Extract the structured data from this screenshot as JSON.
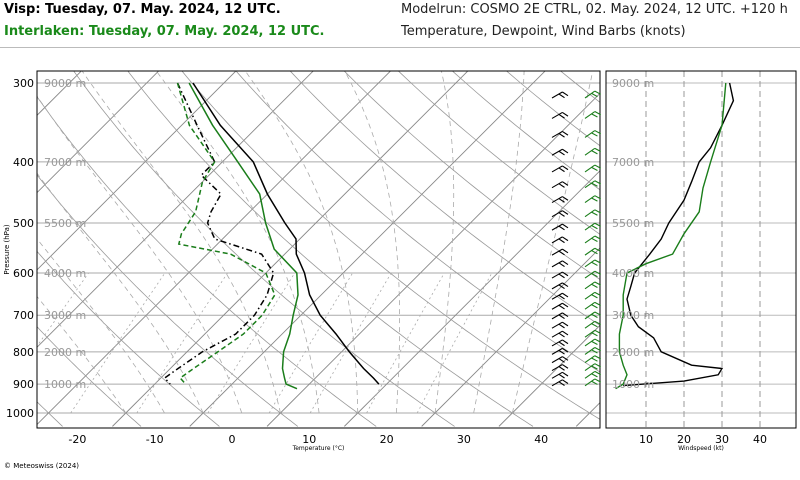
{
  "header": {
    "title_visp": "Visp: Tuesday, 07. May. 2024, 12 UTC.",
    "title_interlaken": "Interlaken: Tuesday, 07. May. 2024, 12 UTC.",
    "modelrun": "Modelrun: COSMO 2E CTRL, 02. May. 2024, 12 UTC. +120 h",
    "variables": "Temperature, Dewpoint, Wind Barbs (knots)"
  },
  "footer": {
    "credit": "© Meteoswiss (2024)"
  },
  "colors": {
    "visp": "#000000",
    "interlaken": "#1a7d1a",
    "grid": "#999999"
  },
  "chart_data": [
    {
      "type": "line",
      "subtype": "skew-t",
      "xlabel": "Temperature (°C)",
      "ylabel": "Pressure (hPa)",
      "x_ticks": [
        -20,
        -10,
        0,
        10,
        20,
        30,
        40
      ],
      "y_ticks": [
        300,
        400,
        500,
        600,
        700,
        800,
        900,
        1000
      ],
      "height_labels": [
        {
          "p": 300,
          "label": "9000 m"
        },
        {
          "p": 400,
          "label": "7000 m"
        },
        {
          "p": 500,
          "label": "5500 m"
        },
        {
          "p": 600,
          "label": "4000 m"
        },
        {
          "p": 700,
          "label": "3000 m"
        },
        {
          "p": 800,
          "label": "2000 m"
        },
        {
          "p": 900,
          "label": "1000 m"
        }
      ],
      "xlim": [
        -25,
        47
      ],
      "ylim": [
        300,
        1000
      ],
      "series": [
        {
          "name": "Visp temperature",
          "style": "solid",
          "color": "#000000",
          "points": [
            [
              300,
              -44
            ],
            [
              350,
              -35
            ],
            [
              400,
              -26
            ],
            [
              450,
              -20
            ],
            [
              500,
              -14
            ],
            [
              530,
              -10.5
            ],
            [
              560,
              -8.5
            ],
            [
              600,
              -5
            ],
            [
              650,
              -1.5
            ],
            [
              700,
              2.5
            ],
            [
              750,
              7
            ],
            [
              800,
              11
            ],
            [
              850,
              15
            ],
            [
              880,
              17.5
            ],
            [
              900,
              19
            ]
          ]
        },
        {
          "name": "Visp dewpoint",
          "style": "dash-dot",
          "color": "#000000",
          "points": [
            [
              300,
              -46
            ],
            [
              350,
              -38
            ],
            [
              400,
              -31
            ],
            [
              420,
              -31
            ],
            [
              450,
              -26
            ],
            [
              480,
              -25
            ],
            [
              500,
              -24
            ],
            [
              530,
              -21
            ],
            [
              560,
              -13
            ],
            [
              600,
              -9
            ],
            [
              650,
              -7
            ],
            [
              700,
              -6
            ],
            [
              750,
              -6
            ],
            [
              800,
              -8
            ],
            [
              850,
              -9
            ],
            [
              880,
              -9.5
            ],
            [
              900,
              -8
            ]
          ]
        },
        {
          "name": "Interlaken temperature",
          "style": "solid",
          "color": "#1a7d1a",
          "points": [
            [
              300,
              -44.5
            ],
            [
              350,
              -36
            ],
            [
              400,
              -28
            ],
            [
              450,
              -21
            ],
            [
              500,
              -16.5
            ],
            [
              550,
              -12
            ],
            [
              600,
              -6
            ],
            [
              650,
              -3
            ],
            [
              700,
              -1
            ],
            [
              750,
              1
            ],
            [
              800,
              2.5
            ],
            [
              850,
              4.5
            ],
            [
              880,
              6
            ],
            [
              900,
              7
            ],
            [
              915,
              9
            ]
          ]
        },
        {
          "name": "Interlaken dewpoint",
          "style": "dashed",
          "color": "#1a7d1a",
          "points": [
            [
              300,
              -46
            ],
            [
              350,
              -39
            ],
            [
              400,
              -31
            ],
            [
              430,
              -30
            ],
            [
              480,
              -27
            ],
            [
              520,
              -26
            ],
            [
              540,
              -25
            ],
            [
              560,
              -17
            ],
            [
              600,
              -10
            ],
            [
              650,
              -6
            ],
            [
              700,
              -5
            ],
            [
              750,
              -5
            ],
            [
              800,
              -6
            ],
            [
              850,
              -7
            ],
            [
              880,
              -7.5
            ],
            [
              900,
              -6
            ]
          ]
        }
      ]
    },
    {
      "type": "line",
      "subtype": "wind-profile",
      "xlabel": "Windspeed (kt)",
      "x_ticks": [
        10,
        20,
        30,
        40
      ],
      "xlim": [
        0,
        45
      ],
      "height_labels": [
        "9000 m",
        "7000 m",
        "5500 m",
        "4000 m",
        "3000 m",
        "2000 m",
        "1000 m"
      ],
      "series": [
        {
          "name": "Visp windspeed",
          "color": "#000000",
          "points": [
            [
              300,
              32
            ],
            [
              320,
              33
            ],
            [
              350,
              30
            ],
            [
              380,
              27
            ],
            [
              400,
              24
            ],
            [
              430,
              22
            ],
            [
              460,
              20
            ],
            [
              500,
              16
            ],
            [
              530,
              14
            ],
            [
              560,
              11
            ],
            [
              600,
              7
            ],
            [
              630,
              6
            ],
            [
              660,
              5
            ],
            [
              700,
              6
            ],
            [
              730,
              8
            ],
            [
              760,
              12
            ],
            [
              800,
              14
            ],
            [
              840,
              22
            ],
            [
              850,
              30
            ],
            [
              870,
              29
            ],
            [
              890,
              20
            ],
            [
              905,
              4
            ]
          ]
        },
        {
          "name": "Interlaken windspeed",
          "color": "#1a7d1a",
          "points": [
            [
              300,
              31
            ],
            [
              350,
              30
            ],
            [
              400,
              27
            ],
            [
              440,
              25
            ],
            [
              480,
              24
            ],
            [
              520,
              20
            ],
            [
              560,
              17
            ],
            [
              580,
              10
            ],
            [
              600,
              5
            ],
            [
              650,
              4
            ],
            [
              700,
              4
            ],
            [
              750,
              3
            ],
            [
              800,
              3
            ],
            [
              840,
              4
            ],
            [
              870,
              5
            ],
            [
              900,
              4
            ],
            [
              915,
              2
            ]
          ]
        }
      ]
    }
  ]
}
